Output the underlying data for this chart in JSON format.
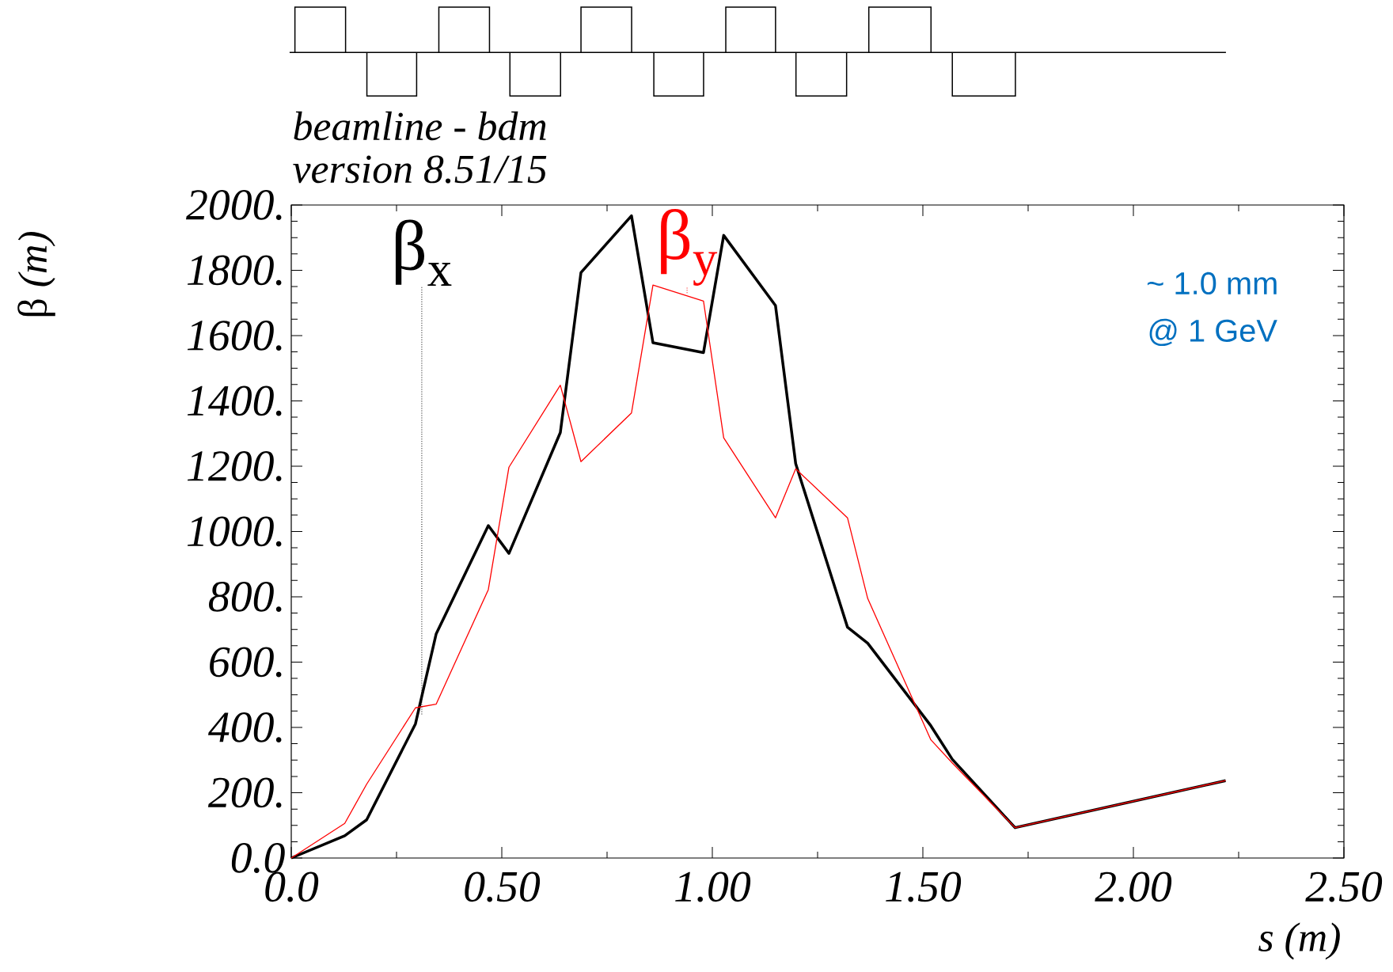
{
  "chart_data": {
    "type": "line",
    "title": "beamline - bdm",
    "subtitle": "version 8.51/15",
    "xlabel": "s (m)",
    "ylabel": "β *(m)*",
    "xlim": [
      0,
      2.5
    ],
    "ylim": [
      0,
      2000
    ],
    "xticks": [
      {
        "value": 0,
        "label": "0.0"
      },
      {
        "value": 0.5,
        "label": "0.50"
      },
      {
        "value": 1.0,
        "label": "1.00"
      },
      {
        "value": 1.5,
        "label": "1.50"
      },
      {
        "value": 2.0,
        "label": "2.00"
      },
      {
        "value": 2.5,
        "label": "2.50"
      }
    ],
    "yticks": [
      {
        "value": 0,
        "label": "0.0"
      },
      {
        "value": 200,
        "label": "200."
      },
      {
        "value": 400,
        "label": "400."
      },
      {
        "value": 600,
        "label": "600."
      },
      {
        "value": 800,
        "label": "800."
      },
      {
        "value": 1000,
        "label": "1000."
      },
      {
        "value": 1200,
        "label": "1200."
      },
      {
        "value": 1400,
        "label": "1400."
      },
      {
        "value": 1600,
        "label": "1600."
      },
      {
        "value": 1800,
        "label": "1800."
      },
      {
        "value": 2000,
        "label": "2000."
      }
    ],
    "grid": false,
    "marker": "none",
    "line_style": "solid",
    "series": [
      {
        "color": "#000000",
        "x": [
          0,
          0.127,
          0.179,
          0.295,
          0.344,
          0.468,
          0.517,
          0.639,
          0.688,
          0.808,
          0.859,
          0.979,
          1.027,
          1.15,
          1.198,
          1.321,
          1.369,
          1.519,
          1.57,
          1.719,
          2.219
        ],
        "values": [
          0,
          68,
          117,
          411,
          686,
          1018,
          933,
          1303,
          1793,
          1967,
          1578,
          1548,
          1907,
          1692,
          1208,
          707,
          658,
          405,
          302,
          93,
          237
        ]
      },
      {
        "color": "#ff0000",
        "x": [
          0,
          0.127,
          0.179,
          0.295,
          0.344,
          0.468,
          0.517,
          0.639,
          0.688,
          0.808,
          0.859,
          0.979,
          1.027,
          1.15,
          1.198,
          1.321,
          1.369,
          1.519,
          1.57,
          1.719,
          2.219
        ],
        "values": [
          0,
          106,
          226,
          460,
          471,
          822,
          1197,
          1448,
          1214,
          1363,
          1755,
          1706,
          1287,
          1042,
          1192,
          1042,
          795,
          362,
          291,
          93,
          237
        ]
      }
    ],
    "annotations": [
      {
        "text": "β$_{x}$",
        "x": 0.31,
        "y": 440
      },
      {
        "text": "β$_{y}$",
        "x": 0.94,
        "y": 1730
      },
      "~ 1.0 mm",
      "@ 1 GeV"
    ]
  }
}
